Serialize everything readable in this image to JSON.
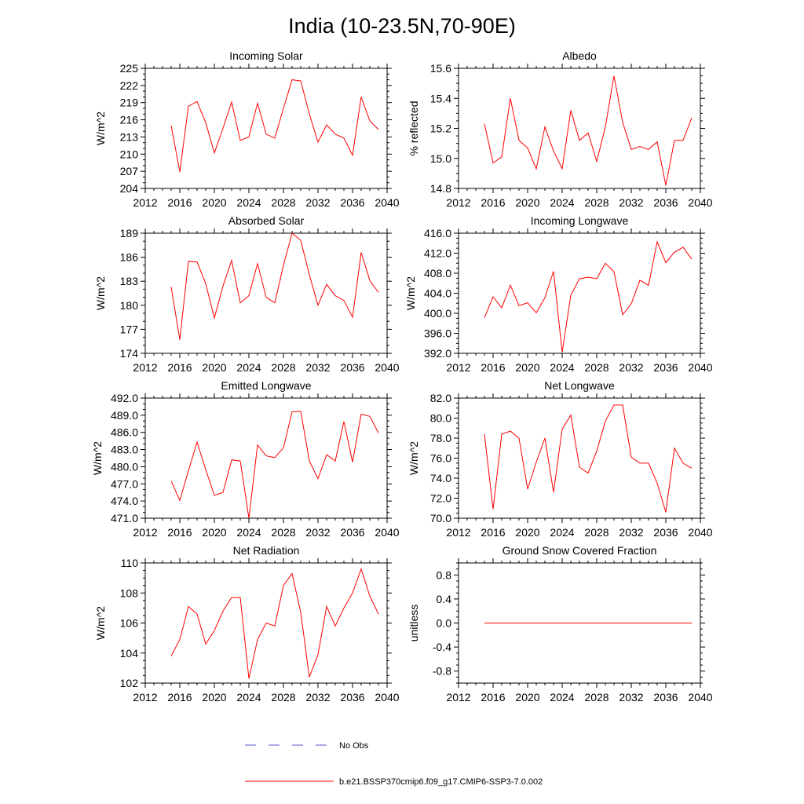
{
  "title": "India (10-23.5N,70-90E)",
  "colors": {
    "model": "#ff0000",
    "obs": "#5555cc",
    "axis": "#000000"
  },
  "legend": {
    "obs_label": "No Obs",
    "model_label": "b.e21.BSSP370cmip6.f09_g17.CMIP6-SSP3-7.0.002"
  },
  "chart_data": [
    {
      "type": "line",
      "title": "Incoming Solar",
      "ylabel": "W/m^2",
      "xlim": [
        2012,
        2040
      ],
      "xticks": [
        2012,
        2016,
        2020,
        2024,
        2028,
        2032,
        2036,
        2040
      ],
      "ylim": [
        204,
        225
      ],
      "yticks": [
        204,
        207,
        210,
        213,
        216,
        219,
        222,
        225
      ],
      "ytick_labels": [
        "204",
        "207",
        "210",
        "213",
        "216",
        "219",
        "222",
        "225"
      ],
      "yminor": 1,
      "x": [
        2015,
        2016,
        2017,
        2018,
        2019,
        2020,
        2021,
        2022,
        2023,
        2024,
        2025,
        2026,
        2027,
        2028,
        2029,
        2030,
        2031,
        2032,
        2033,
        2034,
        2035,
        2036,
        2037,
        2038,
        2039
      ],
      "y": [
        215.0,
        206.9,
        218.4,
        219.2,
        215.5,
        210.2,
        214.5,
        219.1,
        212.4,
        213.0,
        218.9,
        213.5,
        212.8,
        218.0,
        223.0,
        222.8,
        217.0,
        212.1,
        215.1,
        213.5,
        212.8,
        209.8,
        220.0,
        215.8,
        214.3
      ]
    },
    {
      "type": "line",
      "title": "Albedo",
      "ylabel": "% reflected",
      "xlim": [
        2012,
        2040
      ],
      "xticks": [
        2012,
        2016,
        2020,
        2024,
        2028,
        2032,
        2036,
        2040
      ],
      "ylim": [
        14.8,
        15.6
      ],
      "yticks": [
        14.8,
        15.0,
        15.2,
        15.4,
        15.6
      ],
      "ytick_labels": [
        "14.8",
        "15.0",
        "15.2",
        "15.4",
        "15.6"
      ],
      "yminor": 0.05,
      "x": [
        2015,
        2016,
        2017,
        2018,
        2019,
        2020,
        2021,
        2022,
        2023,
        2024,
        2025,
        2026,
        2027,
        2028,
        2029,
        2030,
        2031,
        2032,
        2033,
        2034,
        2035,
        2036,
        2037,
        2038,
        2039
      ],
      "y": [
        15.23,
        14.97,
        15.01,
        15.4,
        15.12,
        15.07,
        14.93,
        15.21,
        15.05,
        14.93,
        15.32,
        15.12,
        15.17,
        14.98,
        15.21,
        15.55,
        15.24,
        15.06,
        15.08,
        15.06,
        15.11,
        14.82,
        15.12,
        15.12,
        15.27
      ]
    },
    {
      "type": "line",
      "title": "Absorbed Solar",
      "ylabel": "W/m^2",
      "xlim": [
        2012,
        2040
      ],
      "xticks": [
        2012,
        2016,
        2020,
        2024,
        2028,
        2032,
        2036,
        2040
      ],
      "ylim": [
        174,
        189
      ],
      "yticks": [
        174,
        177,
        180,
        183,
        186,
        189
      ],
      "ytick_labels": [
        "174",
        "177",
        "180",
        "183",
        "186",
        "189"
      ],
      "yminor": 1,
      "x": [
        2015,
        2016,
        2017,
        2018,
        2019,
        2020,
        2021,
        2022,
        2023,
        2024,
        2025,
        2026,
        2027,
        2028,
        2029,
        2030,
        2031,
        2032,
        2033,
        2034,
        2035,
        2036,
        2037,
        2038,
        2039
      ],
      "y": [
        182.3,
        175.7,
        185.5,
        185.4,
        182.7,
        178.4,
        182.4,
        185.6,
        180.3,
        181.2,
        185.2,
        181.0,
        180.3,
        185.0,
        189.0,
        188.1,
        183.8,
        180.0,
        182.6,
        181.2,
        180.6,
        178.5,
        186.6,
        183.1,
        181.6
      ]
    },
    {
      "type": "line",
      "title": "Incoming Longwave",
      "ylabel": "W/m^2",
      "xlim": [
        2012,
        2040
      ],
      "xticks": [
        2012,
        2016,
        2020,
        2024,
        2028,
        2032,
        2036,
        2040
      ],
      "ylim": [
        392,
        416
      ],
      "yticks": [
        392,
        396,
        400,
        404,
        408,
        412,
        416
      ],
      "ytick_labels": [
        "392.0",
        "396.0",
        "400.0",
        "404.0",
        "408.0",
        "412.0",
        "416.0"
      ],
      "yminor": 1,
      "x": [
        2015,
        2016,
        2017,
        2018,
        2019,
        2020,
        2021,
        2022,
        2023,
        2024,
        2025,
        2026,
        2027,
        2028,
        2029,
        2030,
        2031,
        2032,
        2033,
        2034,
        2035,
        2036,
        2037,
        2038,
        2039
      ],
      "y": [
        399.1,
        403.3,
        401.1,
        405.6,
        401.5,
        402.1,
        400.1,
        403.1,
        408.4,
        392.2,
        403.6,
        406.9,
        407.2,
        406.9,
        410.0,
        408.3,
        399.7,
        401.9,
        406.6,
        405.6,
        414.3,
        410.1,
        412.2,
        413.2,
        410.8
      ]
    },
    {
      "type": "line",
      "title": "Emitted Longwave",
      "ylabel": "W/m^2",
      "xlim": [
        2012,
        2040
      ],
      "xticks": [
        2012,
        2016,
        2020,
        2024,
        2028,
        2032,
        2036,
        2040
      ],
      "ylim": [
        471,
        492
      ],
      "yticks": [
        471,
        474,
        477,
        480,
        483,
        486,
        489,
        492
      ],
      "ytick_labels": [
        "471.0",
        "474.0",
        "477.0",
        "480.0",
        "483.0",
        "486.0",
        "489.0",
        "492.0"
      ],
      "yminor": 1,
      "x": [
        2015,
        2016,
        2017,
        2018,
        2019,
        2020,
        2021,
        2022,
        2023,
        2024,
        2025,
        2026,
        2027,
        2028,
        2029,
        2030,
        2031,
        2032,
        2033,
        2034,
        2035,
        2036,
        2037,
        2038,
        2039
      ],
      "y": [
        477.5,
        474.1,
        479.3,
        484.3,
        479.5,
        475.0,
        475.5,
        481.2,
        481.0,
        471.0,
        483.8,
        481.9,
        481.6,
        483.3,
        489.6,
        489.7,
        481.0,
        477.9,
        482.1,
        481.0,
        487.9,
        480.8,
        489.2,
        488.8,
        485.9
      ]
    },
    {
      "type": "line",
      "title": "Net Longwave",
      "ylabel": "W/m^2",
      "xlim": [
        2012,
        2040
      ],
      "xticks": [
        2012,
        2016,
        2020,
        2024,
        2028,
        2032,
        2036,
        2040
      ],
      "ylim": [
        70,
        82
      ],
      "yticks": [
        70,
        72,
        74,
        76,
        78,
        80,
        82
      ],
      "ytick_labels": [
        "70.0",
        "72.0",
        "74.0",
        "76.0",
        "78.0",
        "80.0",
        "82.0"
      ],
      "yminor": 0.5,
      "x": [
        2015,
        2016,
        2017,
        2018,
        2019,
        2020,
        2021,
        2022,
        2023,
        2024,
        2025,
        2026,
        2027,
        2028,
        2029,
        2030,
        2031,
        2032,
        2033,
        2034,
        2035,
        2036,
        2037,
        2038,
        2039
      ],
      "y": [
        78.4,
        70.9,
        78.4,
        78.7,
        78.0,
        72.9,
        75.6,
        78.0,
        72.6,
        78.9,
        80.3,
        75.1,
        74.5,
        76.7,
        79.7,
        81.3,
        81.3,
        76.1,
        75.5,
        75.5,
        73.5,
        70.6,
        77.0,
        75.5,
        75.0
      ]
    },
    {
      "type": "line",
      "title": "Net Radiation",
      "ylabel": "W/m^2",
      "xlim": [
        2012,
        2040
      ],
      "xticks": [
        2012,
        2016,
        2020,
        2024,
        2028,
        2032,
        2036,
        2040
      ],
      "ylim": [
        102,
        110
      ],
      "yticks": [
        102,
        104,
        106,
        108,
        110
      ],
      "ytick_labels": [
        "102",
        "104",
        "106",
        "108",
        "110"
      ],
      "yminor": 0.5,
      "x": [
        2015,
        2016,
        2017,
        2018,
        2019,
        2020,
        2021,
        2022,
        2023,
        2024,
        2025,
        2026,
        2027,
        2028,
        2029,
        2030,
        2031,
        2032,
        2033,
        2034,
        2035,
        2036,
        2037,
        2038,
        2039
      ],
      "y": [
        103.8,
        104.9,
        107.1,
        106.6,
        104.6,
        105.5,
        106.8,
        107.7,
        107.7,
        102.3,
        104.9,
        106.0,
        105.8,
        108.5,
        109.3,
        106.7,
        102.4,
        103.9,
        107.1,
        105.8,
        107.0,
        108.0,
        109.6,
        107.8,
        106.6
      ]
    },
    {
      "type": "line",
      "title": "Ground Snow Covered Fraction",
      "ylabel": "unitless",
      "xlim": [
        2012,
        2040
      ],
      "xticks": [
        2012,
        2016,
        2020,
        2024,
        2028,
        2032,
        2036,
        2040
      ],
      "ylim": [
        -1.0,
        1.0
      ],
      "yticks": [
        -0.8,
        -0.4,
        0.0,
        0.4,
        0.8
      ],
      "ytick_labels": [
        "-0.8",
        "-0.4",
        "0.0",
        "0.4",
        "0.8"
      ],
      "yminor": 0.1,
      "x": [
        2015,
        2016,
        2017,
        2018,
        2019,
        2020,
        2021,
        2022,
        2023,
        2024,
        2025,
        2026,
        2027,
        2028,
        2029,
        2030,
        2031,
        2032,
        2033,
        2034,
        2035,
        2036,
        2037,
        2038,
        2039
      ],
      "y": [
        0,
        0,
        0,
        0,
        0,
        0,
        0,
        0,
        0,
        0,
        0,
        0,
        0,
        0,
        0,
        0,
        0,
        0,
        0,
        0,
        0,
        0,
        0,
        0,
        0
      ]
    }
  ]
}
